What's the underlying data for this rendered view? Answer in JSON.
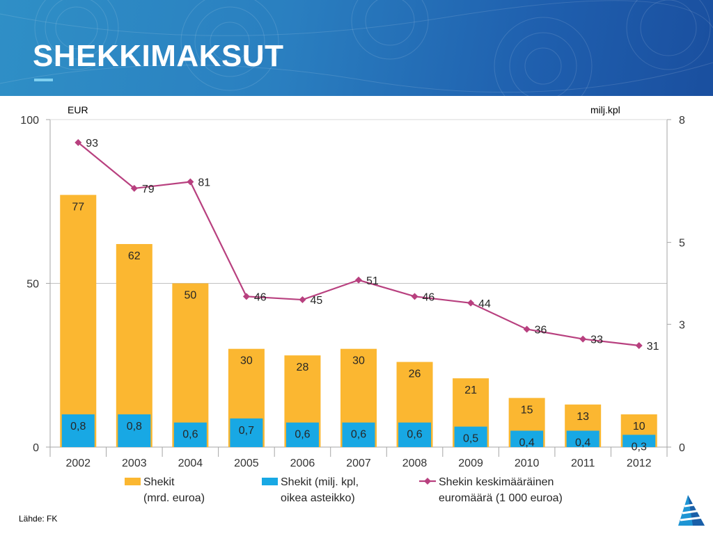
{
  "header": {
    "title": "SHEKKIMAKSUT"
  },
  "source": "Lähde: FK",
  "colors": {
    "header_bg": "#2a7fc0",
    "bar_total": "#fbb731",
    "bar_count": "#18a8e4",
    "line": "#b8407f"
  },
  "chart_data": {
    "type": "bar",
    "categories": [
      "2002",
      "2003",
      "2004",
      "2005",
      "2006",
      "2007",
      "2008",
      "2009",
      "2010",
      "2011",
      "2012"
    ],
    "left_axis": {
      "unit": "EUR",
      "ticks": [
        "0",
        "50",
        "100"
      ],
      "range": [
        0,
        100
      ]
    },
    "right_axis": {
      "unit": "milj.kpl",
      "ticks": [
        "0",
        "3",
        "5",
        "8"
      ],
      "range": [
        0,
        8
      ]
    },
    "series": [
      {
        "name": "Shekit (mrd. euroa)",
        "type": "bar",
        "axis": "left",
        "values": [
          77,
          62,
          50,
          30,
          28,
          30,
          26,
          21,
          15,
          13,
          10
        ],
        "labels": [
          "77",
          "62",
          "50",
          "30",
          "28",
          "30",
          "26",
          "21",
          "15",
          "13",
          "10"
        ]
      },
      {
        "name": "Shekit (milj. kpl, oikea asteikko)",
        "type": "bar",
        "axis": "right",
        "values": [
          0.8,
          0.8,
          0.6,
          0.7,
          0.6,
          0.6,
          0.6,
          0.5,
          0.4,
          0.4,
          0.3
        ],
        "labels": [
          "0,8",
          "0,8",
          "0,6",
          "0,7",
          "0,6",
          "0,6",
          "0,6",
          "0,5",
          "0,4",
          "0,4",
          "0,3"
        ]
      },
      {
        "name": "Shekin keskimääräinen euromäärä (1 000 euroa)",
        "type": "line",
        "axis": "left",
        "values": [
          93,
          79,
          81,
          46,
          45,
          51,
          46,
          44,
          36,
          33,
          31
        ],
        "labels": [
          "93",
          "79",
          "81",
          "46",
          "45",
          "51",
          "46",
          "44",
          "36",
          "33",
          "31"
        ]
      }
    ],
    "legend": {
      "placement": "bottom",
      "items": [
        {
          "line1": "Shekit",
          "line2": "(mrd. euroa)"
        },
        {
          "line1": "Shekit (milj. kpl,",
          "line2": "oikea asteikko)"
        },
        {
          "line1": "Shekin keskimääräinen",
          "line2": "euromäärä (1 000 euroa)"
        }
      ]
    },
    "grid": "horizontal at 50"
  }
}
